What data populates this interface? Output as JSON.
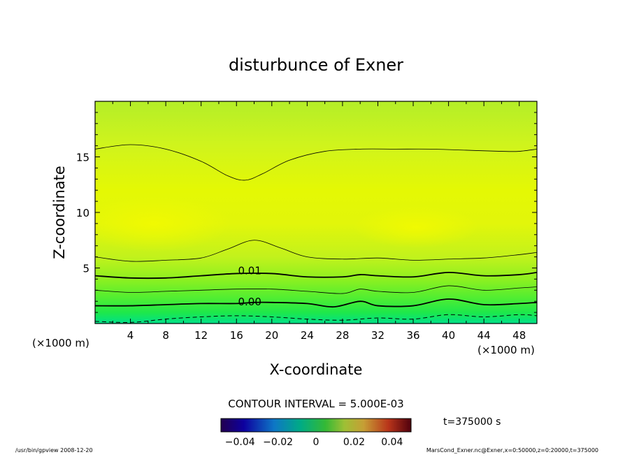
{
  "chart_data": {
    "type": "contour",
    "title": "disturbunce of Exner",
    "xlabel": "X-coordinate",
    "ylabel": "Z-coordinate",
    "x_unit": "(×1000 m)",
    "y_unit": "(×1000 m)",
    "xlim": [
      0,
      50
    ],
    "ylim": [
      0,
      20
    ],
    "x_ticks": [
      4,
      8,
      12,
      16,
      20,
      24,
      28,
      32,
      36,
      40,
      44,
      48
    ],
    "y_ticks": [
      5,
      10,
      15
    ],
    "x_tick_labels": [
      "4",
      "8",
      "12",
      "16",
      "20",
      "24",
      "28",
      "32",
      "36",
      "40",
      "44",
      "48"
    ],
    "y_tick_labels": [
      "5",
      "10",
      "15"
    ],
    "contour_interval_text": "CONTOUR INTERVAL = 5.000E-03",
    "contour_labels": [
      {
        "text": "0.01",
        "x": 17.5,
        "z": 4.8
      },
      {
        "text": "0.00",
        "x": 17.5,
        "z": 2.0
      }
    ],
    "contours": [
      {
        "level": -0.005,
        "style": "dashed",
        "width": 1.0,
        "points": [
          [
            0,
            0.2
          ],
          [
            4,
            0.1
          ],
          [
            8,
            0.4
          ],
          [
            12,
            0.6
          ],
          [
            16,
            0.7
          ],
          [
            20,
            0.6
          ],
          [
            24,
            0.4
          ],
          [
            28,
            0.3
          ],
          [
            32,
            0.5
          ],
          [
            36,
            0.4
          ],
          [
            40,
            0.8
          ],
          [
            44,
            0.6
          ],
          [
            48,
            0.8
          ],
          [
            50,
            0.7
          ]
        ]
      },
      {
        "level": 0.0,
        "style": "solid",
        "width": 1.8,
        "points": [
          [
            0,
            1.6
          ],
          [
            4,
            1.6
          ],
          [
            8,
            1.7
          ],
          [
            12,
            1.8
          ],
          [
            16,
            1.8
          ],
          [
            18,
            1.9
          ],
          [
            20,
            1.9
          ],
          [
            24,
            1.8
          ],
          [
            27,
            1.5
          ],
          [
            30,
            2.0
          ],
          [
            32,
            1.6
          ],
          [
            36,
            1.6
          ],
          [
            40,
            2.2
          ],
          [
            44,
            1.7
          ],
          [
            48,
            1.8
          ],
          [
            50,
            1.9
          ]
        ]
      },
      {
        "level": 0.005,
        "style": "solid",
        "width": 0.8,
        "points": [
          [
            0,
            3.0
          ],
          [
            4,
            2.8
          ],
          [
            8,
            2.9
          ],
          [
            12,
            3.0
          ],
          [
            16,
            3.1
          ],
          [
            20,
            3.1
          ],
          [
            24,
            2.9
          ],
          [
            28,
            2.7
          ],
          [
            30,
            3.1
          ],
          [
            32,
            2.9
          ],
          [
            36,
            2.8
          ],
          [
            40,
            3.4
          ],
          [
            44,
            3.0
          ],
          [
            48,
            3.2
          ],
          [
            50,
            3.3
          ]
        ]
      },
      {
        "level": 0.01,
        "style": "solid",
        "width": 1.8,
        "points": [
          [
            0,
            4.3
          ],
          [
            4,
            4.1
          ],
          [
            8,
            4.1
          ],
          [
            12,
            4.3
          ],
          [
            16,
            4.5
          ],
          [
            20,
            4.5
          ],
          [
            24,
            4.2
          ],
          [
            28,
            4.2
          ],
          [
            30,
            4.4
          ],
          [
            32,
            4.3
          ],
          [
            36,
            4.2
          ],
          [
            40,
            4.6
          ],
          [
            44,
            4.3
          ],
          [
            48,
            4.4
          ],
          [
            50,
            4.6
          ]
        ]
      },
      {
        "level": 0.015,
        "style": "solid",
        "width": 0.8,
        "points": [
          [
            0,
            6.0
          ],
          [
            4,
            5.6
          ],
          [
            8,
            5.7
          ],
          [
            12,
            5.9
          ],
          [
            15,
            6.7
          ],
          [
            18,
            7.5
          ],
          [
            21,
            6.8
          ],
          [
            24,
            6.0
          ],
          [
            28,
            5.8
          ],
          [
            32,
            5.9
          ],
          [
            36,
            5.7
          ],
          [
            40,
            5.8
          ],
          [
            44,
            5.9
          ],
          [
            48,
            6.2
          ],
          [
            50,
            6.4
          ]
        ]
      },
      {
        "level": 0.02,
        "style": "solid",
        "width": 0.8,
        "points": [
          [
            0,
            15.7
          ],
          [
            4,
            16.1
          ],
          [
            8,
            15.7
          ],
          [
            12,
            14.6
          ],
          [
            15,
            13.3
          ],
          [
            17,
            12.9
          ],
          [
            19,
            13.5
          ],
          [
            22,
            14.7
          ],
          [
            26,
            15.5
          ],
          [
            30,
            15.7
          ],
          [
            34,
            15.7
          ],
          [
            38,
            15.7
          ],
          [
            42,
            15.6
          ],
          [
            46,
            15.5
          ],
          [
            48,
            15.5
          ],
          [
            50,
            15.7
          ]
        ]
      }
    ],
    "colorbar": {
      "labels": [
        "−0.04",
        "−0.02",
        "0",
        "0.02",
        "0.04"
      ],
      "values": [
        -0.04,
        -0.02,
        0,
        0.02,
        0.04
      ],
      "range": [
        -0.05,
        0.05
      ]
    }
  },
  "annotations": {
    "time": "t=375000 s",
    "footer_left": "/usr/bin/gpview   2008-12-20",
    "footer_right": "MarsCond_Exner.nc@Exner,x=0:50000,z=0:20000,t=375000"
  },
  "colors": {
    "band_bottom": "#00e08a",
    "band_top": "#e8f600",
    "background": "#ffffff"
  }
}
